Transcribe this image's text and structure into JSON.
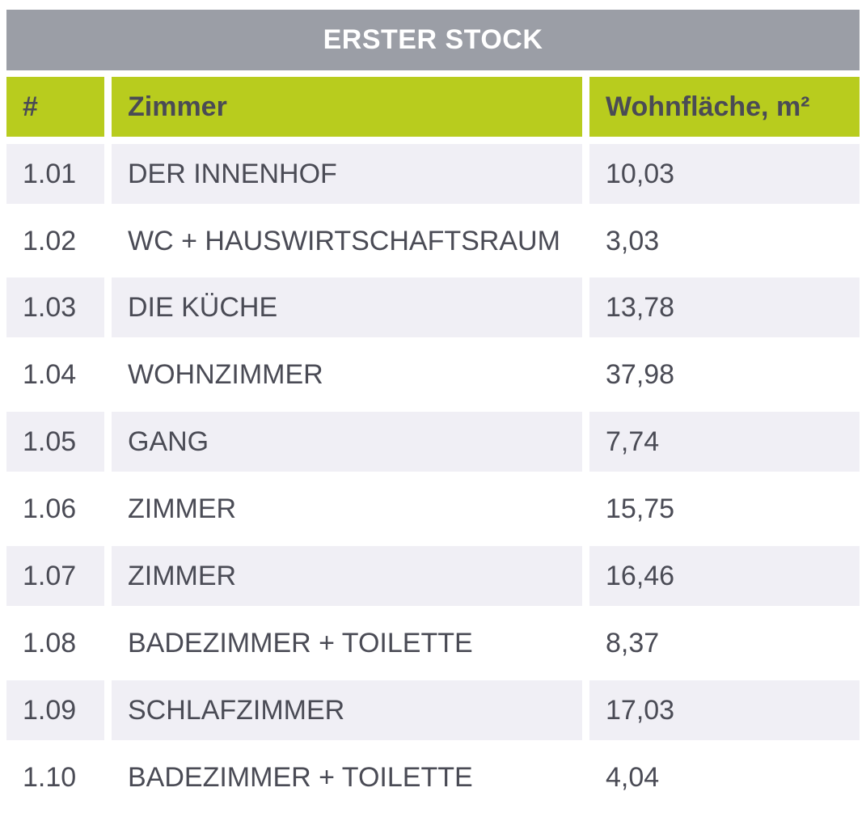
{
  "table": {
    "title": "ERSTER STOCK",
    "headers": {
      "num": "#",
      "room": "Zimmer",
      "area": "Wohnfläche, m²"
    },
    "rows": [
      {
        "num": "1.01",
        "room": "DER INNENHOF",
        "area": "10,03"
      },
      {
        "num": "1.02",
        "room": "WC + HAUSWIRTSCHAFTSRAUM",
        "area": "3,03"
      },
      {
        "num": "1.03",
        "room": "DIE KÜCHE",
        "area": "13,78"
      },
      {
        "num": "1.04",
        "room": "WOHNZIMMER",
        "area": "37,98"
      },
      {
        "num": "1.05",
        "room": "GANG",
        "area": "7,74"
      },
      {
        "num": "1.06",
        "room": "ZIMMER",
        "area": "15,75"
      },
      {
        "num": "1.07",
        "room": "ZIMMER",
        "area": "16,46"
      },
      {
        "num": "1.08",
        "room": "BADEZIMMER + TOILETTE",
        "area": "8,37"
      },
      {
        "num": "1.09",
        "room": "SCHLAFZIMMER",
        "area": "17,03"
      },
      {
        "num": "1.10",
        "room": "BADEZIMMER + TOILETTE",
        "area": "4,04"
      }
    ]
  },
  "colors": {
    "title_bg": "#9b9ea6",
    "header_bg": "#b8cc1e",
    "row_shade": "#f0eff5",
    "text": "#4a4b55"
  }
}
